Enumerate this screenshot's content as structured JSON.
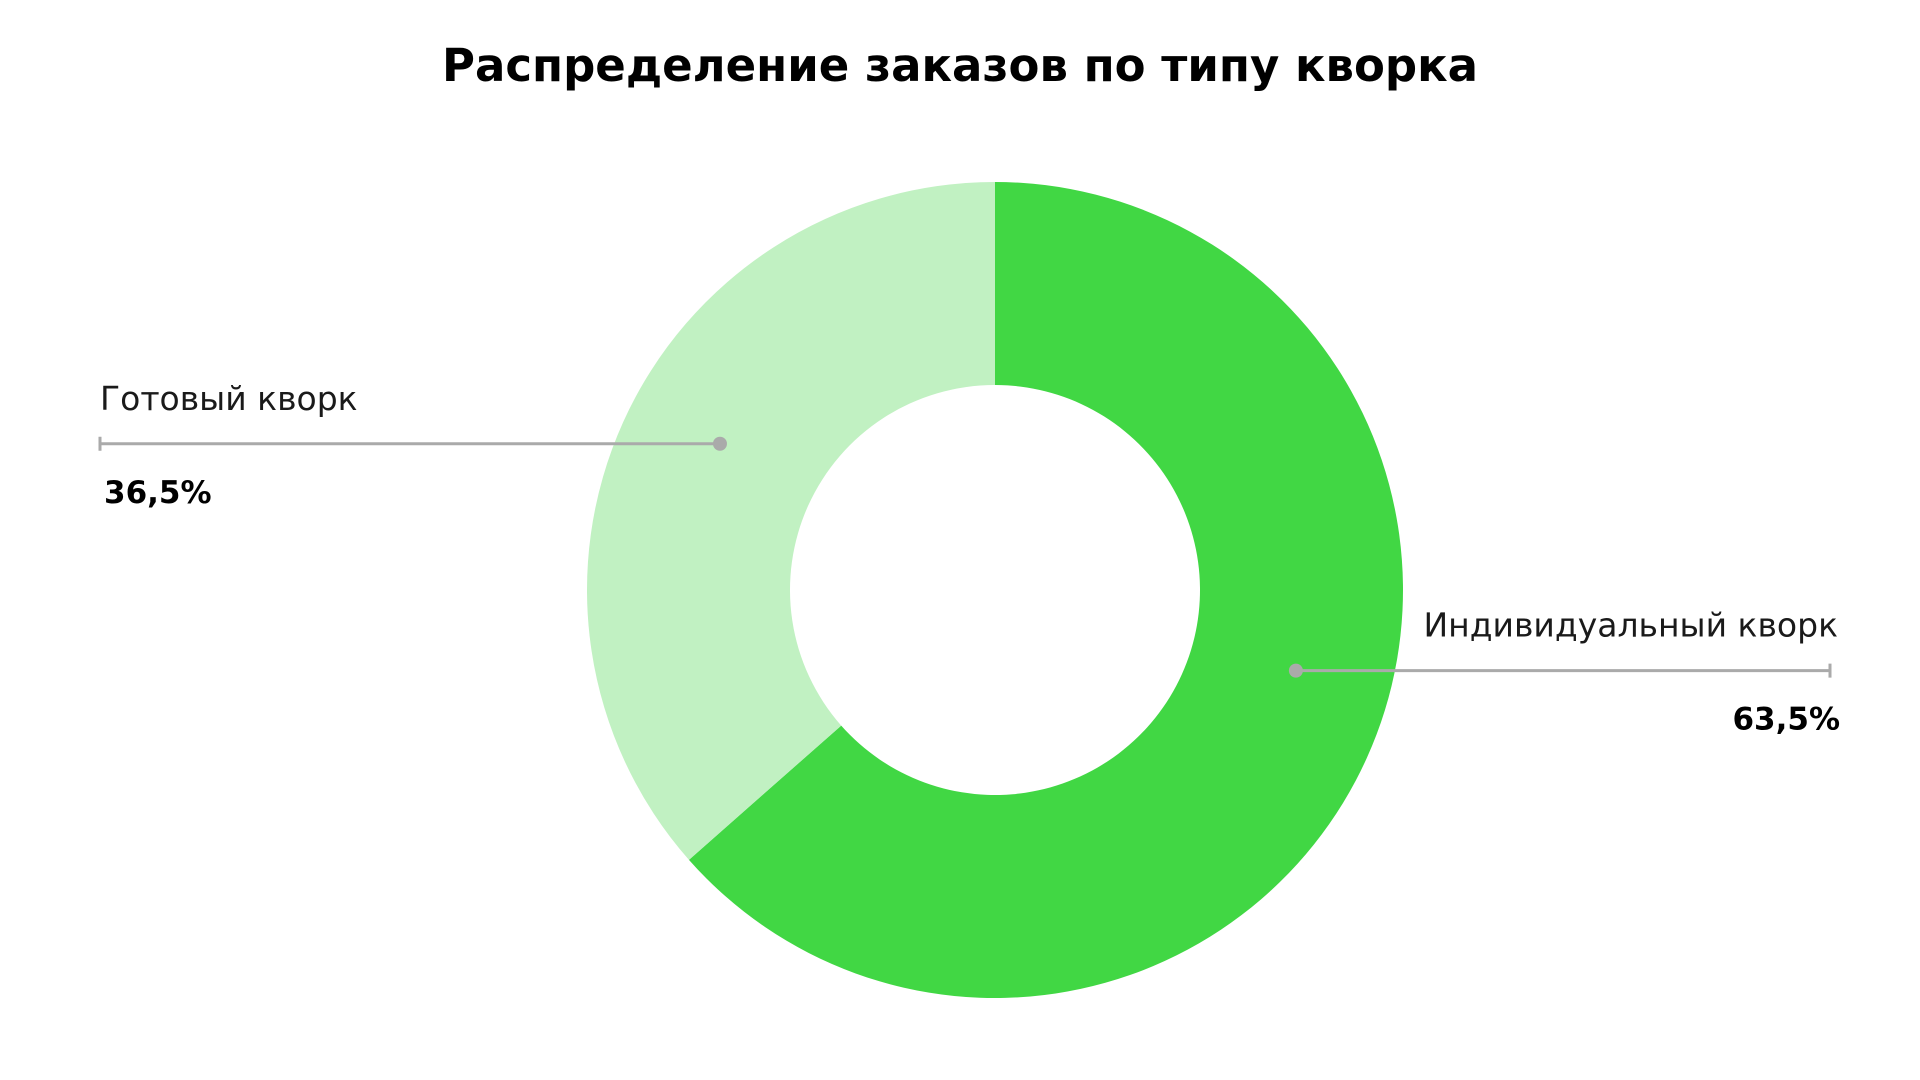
{
  "chart_data": {
    "type": "pie",
    "variant": "donut",
    "title": "Распределение заказов по типу кворка",
    "slices": [
      {
        "name": "Индивидуальный кворк",
        "value": 63.5,
        "value_label": "63,5%",
        "color": "#41d744"
      },
      {
        "name": "Готовый кворк",
        "value": 36.5,
        "value_label": "36,5%",
        "color": "#c1f1c2"
      }
    ],
    "start_angle_deg": 0,
    "direction": "clockwise",
    "legend": "none"
  },
  "colors": {
    "leader_line": "#aaaaaa",
    "background": "#ffffff"
  }
}
